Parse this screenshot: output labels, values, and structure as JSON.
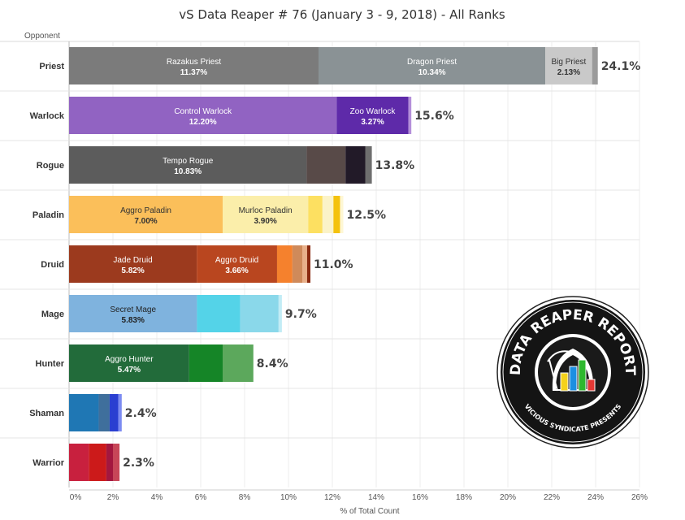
{
  "chart_data": {
    "type": "bar",
    "orientation": "horizontal",
    "stacked": true,
    "title": "vS Data Reaper # 76 (January 3 - 9, 2018) - All Ranks",
    "ylabel": "Opponent",
    "xlabel": "% of Total Count",
    "xlim": [
      0,
      26
    ],
    "xticks": [
      "0%",
      "2%",
      "4%",
      "6%",
      "8%",
      "10%",
      "12%",
      "14%",
      "16%",
      "18%",
      "20%",
      "22%",
      "24%",
      "26%"
    ],
    "grid": true,
    "categories": [
      {
        "name": "Priest",
        "total": 24.1,
        "total_label": "24.1%",
        "segments": [
          {
            "label": "Razakus Priest",
            "pct": "11.37%",
            "value": 11.37,
            "color": "#7b7b7b",
            "text_color": "#ffffff"
          },
          {
            "label": "Dragon Priest",
            "pct": "10.34%",
            "value": 10.34,
            "color": "#8a9295",
            "text_color": "#ffffff"
          },
          {
            "label": "Big Priest",
            "pct": "2.13%",
            "value": 2.13,
            "color": "#c9c9c9",
            "text_color": "#333333"
          },
          {
            "label": "",
            "pct": "",
            "value": 0.26,
            "color": "#9b9b9b",
            "text_color": "#ffffff"
          }
        ]
      },
      {
        "name": "Warlock",
        "total": 15.6,
        "total_label": "15.6%",
        "segments": [
          {
            "label": "Control Warlock",
            "pct": "12.20%",
            "value": 12.2,
            "color": "#9163c2",
            "text_color": "#ffffff"
          },
          {
            "label": "Zoo Warlock",
            "pct": "3.27%",
            "value": 3.27,
            "color": "#5e2aa9",
            "text_color": "#ffffff"
          },
          {
            "label": "",
            "pct": "",
            "value": 0.13,
            "color": "#b48fd9",
            "text_color": "#ffffff"
          }
        ]
      },
      {
        "name": "Rogue",
        "total": 13.8,
        "total_label": "13.8%",
        "segments": [
          {
            "label": "Tempo Rogue",
            "pct": "10.83%",
            "value": 10.83,
            "color": "#5c5c5c",
            "text_color": "#ffffff"
          },
          {
            "label": "",
            "pct": "",
            "value": 1.77,
            "color": "#584a48",
            "text_color": "#ffffff"
          },
          {
            "label": "",
            "pct": "",
            "value": 0.9,
            "color": "#221a28",
            "text_color": "#ffffff"
          },
          {
            "label": "",
            "pct": "",
            "value": 0.3,
            "color": "#6e6e6e",
            "text_color": "#ffffff"
          }
        ]
      },
      {
        "name": "Paladin",
        "total": 12.5,
        "total_label": "12.5%",
        "segments": [
          {
            "label": "Aggro Paladin",
            "pct": "7.00%",
            "value": 7.0,
            "color": "#fbbf5a",
            "text_color": "#333333"
          },
          {
            "label": "Murloc Paladin",
            "pct": "3.90%",
            "value": 3.9,
            "color": "#fbeeaa",
            "text_color": "#333333"
          },
          {
            "label": "",
            "pct": "",
            "value": 0.65,
            "color": "#fde061",
            "text_color": "#333333"
          },
          {
            "label": "",
            "pct": "",
            "value": 0.5,
            "color": "#fbf3c8",
            "text_color": "#333333"
          },
          {
            "label": "",
            "pct": "",
            "value": 0.3,
            "color": "#f4c20d",
            "text_color": "#333333"
          },
          {
            "label": "",
            "pct": "",
            "value": 0.15,
            "color": "#fef7d4",
            "text_color": "#333333"
          }
        ]
      },
      {
        "name": "Druid",
        "total": 11.0,
        "total_label": "11.0%",
        "segments": [
          {
            "label": "Jade Druid",
            "pct": "5.82%",
            "value": 5.82,
            "color": "#9c3a1e",
            "text_color": "#ffffff"
          },
          {
            "label": "Aggro Druid",
            "pct": "3.66%",
            "value": 3.66,
            "color": "#b9461f",
            "text_color": "#ffffff"
          },
          {
            "label": "",
            "pct": "",
            "value": 0.7,
            "color": "#f5812d",
            "text_color": "#ffffff"
          },
          {
            "label": "",
            "pct": "",
            "value": 0.45,
            "color": "#cf8a5a",
            "text_color": "#ffffff"
          },
          {
            "label": "",
            "pct": "",
            "value": 0.22,
            "color": "#e8b08a",
            "text_color": "#ffffff"
          },
          {
            "label": "",
            "pct": "",
            "value": 0.15,
            "color": "#8a2a10",
            "text_color": "#ffffff"
          }
        ]
      },
      {
        "name": "Mage",
        "total": 9.7,
        "total_label": "9.7%",
        "segments": [
          {
            "label": "Secret Mage",
            "pct": "5.83%",
            "value": 5.83,
            "color": "#7fb3de",
            "text_color": "#222222"
          },
          {
            "label": "",
            "pct": "",
            "value": 1.97,
            "color": "#54d3e8",
            "text_color": "#222222"
          },
          {
            "label": "",
            "pct": "",
            "value": 1.75,
            "color": "#8ad8ea",
            "text_color": "#222222"
          },
          {
            "label": "",
            "pct": "",
            "value": 0.15,
            "color": "#c2ecf5",
            "text_color": "#222222"
          }
        ]
      },
      {
        "name": "Hunter",
        "total": 8.4,
        "total_label": "8.4%",
        "segments": [
          {
            "label": "Aggro Hunter",
            "pct": "5.47%",
            "value": 5.47,
            "color": "#226b3a",
            "text_color": "#ffffff"
          },
          {
            "label": "",
            "pct": "",
            "value": 1.53,
            "color": "#158527",
            "text_color": "#ffffff"
          },
          {
            "label": "",
            "pct": "",
            "value": 1.4,
            "color": "#5ca85c",
            "text_color": "#ffffff"
          }
        ]
      },
      {
        "name": "Shaman",
        "total": 2.4,
        "total_label": "2.4%",
        "segments": [
          {
            "label": "",
            "pct": "",
            "value": 1.35,
            "color": "#1f77b4",
            "text_color": "#ffffff"
          },
          {
            "label": "",
            "pct": "",
            "value": 0.5,
            "color": "#3f6f9c",
            "text_color": "#ffffff"
          },
          {
            "label": "",
            "pct": "",
            "value": 0.4,
            "color": "#2a3fd1",
            "text_color": "#ffffff"
          },
          {
            "label": "",
            "pct": "",
            "value": 0.15,
            "color": "#7c8bf2",
            "text_color": "#ffffff"
          }
        ]
      },
      {
        "name": "Warrior",
        "total": 2.3,
        "total_label": "2.3%",
        "segments": [
          {
            "label": "",
            "pct": "",
            "value": 0.9,
            "color": "#c8203e",
            "text_color": "#ffffff"
          },
          {
            "label": "",
            "pct": "",
            "value": 0.8,
            "color": "#cc1a1a",
            "text_color": "#ffffff"
          },
          {
            "label": "",
            "pct": "",
            "value": 0.3,
            "color": "#a3173f",
            "text_color": "#ffffff"
          },
          {
            "label": "",
            "pct": "",
            "value": 0.3,
            "color": "#c74658",
            "text_color": "#ffffff"
          }
        ]
      }
    ]
  },
  "logo": {
    "top_text": "DATA REAPER REPORT",
    "bottom_text": "VICIOUS SYNDICATE PRESENTS",
    "bar_colors": [
      "#f5d21b",
      "#1c8fe2",
      "#2eb82e",
      "#e53935"
    ]
  }
}
